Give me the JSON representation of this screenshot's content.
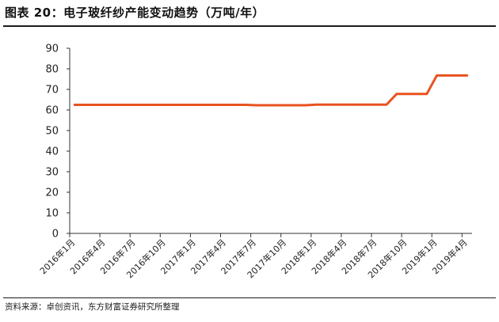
{
  "title": "图表 20：电子玻纤纱产能变动趋势（万吨/年）",
  "source": "资料来源：卓创资讯，东方财富证券研究所整理",
  "chart_data": {
    "type": "line",
    "title": "图表 20：电子玻纤纱产能变动趋势（万吨/年）",
    "xlabel": "",
    "ylabel": "",
    "ylim": [
      0,
      90
    ],
    "yticks": [
      0,
      10,
      20,
      30,
      40,
      50,
      60,
      70,
      80,
      90
    ],
    "grid": false,
    "legend": "none",
    "color": "#e8521f",
    "x_tick_labels": [
      "2016年1月",
      "2016年4月",
      "2016年7月",
      "2016年10月",
      "2017年1月",
      "2017年4月",
      "2017年7月",
      "2017年10月",
      "2018年1月",
      "2018年4月",
      "2018年7月",
      "2018年10月",
      "2019年1月",
      "2019年4月"
    ],
    "x": [
      "2016-01",
      "2016-02",
      "2016-03",
      "2016-04",
      "2016-05",
      "2016-06",
      "2016-07",
      "2016-08",
      "2016-09",
      "2016-10",
      "2016-11",
      "2016-12",
      "2017-01",
      "2017-02",
      "2017-03",
      "2017-04",
      "2017-05",
      "2017-06",
      "2017-07",
      "2017-08",
      "2017-09",
      "2017-10",
      "2017-11",
      "2017-12",
      "2018-01",
      "2018-02",
      "2018-03",
      "2018-04",
      "2018-05",
      "2018-06",
      "2018-07",
      "2018-08",
      "2018-09",
      "2018-10",
      "2018-11",
      "2018-12",
      "2019-01",
      "2019-02",
      "2019-03",
      "2019-04"
    ],
    "values": [
      62.5,
      62.5,
      62.5,
      62.5,
      62.5,
      62.5,
      62.5,
      62.5,
      62.5,
      62.5,
      62.5,
      62.5,
      62.5,
      62.5,
      62.5,
      62.5,
      62.5,
      62.5,
      62.3,
      62.3,
      62.3,
      62.3,
      62.3,
      62.3,
      62.6,
      62.6,
      62.6,
      62.6,
      62.6,
      62.6,
      62.6,
      62.6,
      67.8,
      67.8,
      67.8,
      67.8,
      76.8,
      76.8,
      76.8,
      76.8
    ]
  }
}
